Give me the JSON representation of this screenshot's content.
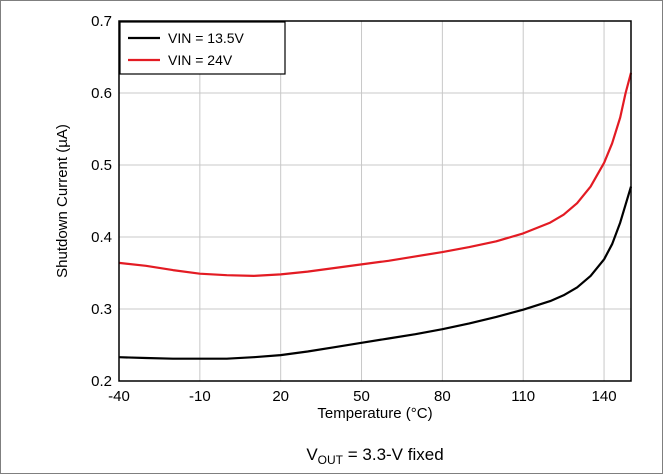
{
  "chart_data": {
    "type": "line",
    "title": "",
    "xlabel": "Temperature (°C)",
    "ylabel": "Shutdown Current (µA)",
    "xlim": [
      -40,
      150
    ],
    "ylim": [
      0.2,
      0.7
    ],
    "xticks": [
      -40,
      -10,
      20,
      50,
      80,
      110,
      140
    ],
    "yticks": [
      0.2,
      0.3,
      0.4,
      0.5,
      0.6,
      0.7
    ],
    "ytick_labels": [
      "0.2",
      "0.3",
      "0.4",
      "0.5",
      "0.6",
      "0.7"
    ],
    "grid": true,
    "legend_position": "top-left",
    "caption": {
      "prefix": "V",
      "subscript": "OUT",
      "suffix": " = 3.3-V fixed"
    },
    "series": [
      {
        "name": "VIN = 13.5V",
        "color": "#000000",
        "x": [
          -40,
          -30,
          -20,
          -10,
          0,
          10,
          20,
          30,
          40,
          50,
          60,
          70,
          80,
          90,
          100,
          110,
          120,
          125,
          130,
          135,
          140,
          143,
          146,
          148,
          150
        ],
        "y": [
          0.233,
          0.232,
          0.231,
          0.231,
          0.231,
          0.233,
          0.236,
          0.241,
          0.247,
          0.253,
          0.259,
          0.265,
          0.272,
          0.28,
          0.289,
          0.299,
          0.311,
          0.319,
          0.33,
          0.346,
          0.369,
          0.39,
          0.42,
          0.445,
          0.47
        ]
      },
      {
        "name": "VIN = 24V",
        "color": "#e31b23",
        "x": [
          -40,
          -30,
          -20,
          -10,
          0,
          10,
          20,
          30,
          40,
          50,
          60,
          70,
          80,
          90,
          100,
          110,
          120,
          125,
          130,
          135,
          140,
          143,
          146,
          148,
          150
        ],
        "y": [
          0.364,
          0.36,
          0.354,
          0.349,
          0.347,
          0.346,
          0.348,
          0.352,
          0.357,
          0.362,
          0.367,
          0.373,
          0.379,
          0.386,
          0.394,
          0.405,
          0.42,
          0.431,
          0.447,
          0.47,
          0.503,
          0.53,
          0.566,
          0.6,
          0.628
        ]
      }
    ]
  }
}
